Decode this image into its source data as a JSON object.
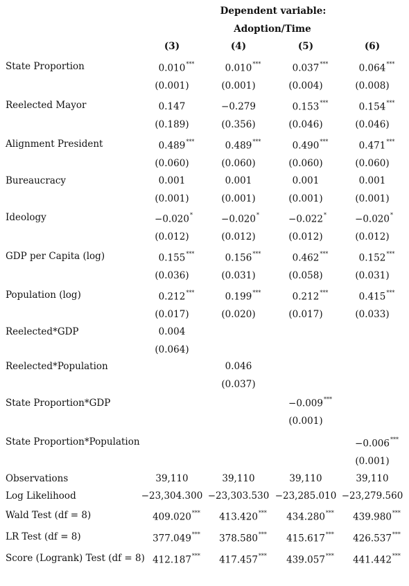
{
  "header": {
    "line1": "Dependent variable:",
    "line2": "Adoption/Time",
    "columns": [
      "(3)",
      "(4)",
      "(5)",
      "(6)"
    ]
  },
  "rows": [
    {
      "label": "State Proportion",
      "est": [
        {
          "v": "0.010",
          "s": "***"
        },
        {
          "v": "0.010",
          "s": "***"
        },
        {
          "v": "0.037",
          "s": "***"
        },
        {
          "v": "0.064",
          "s": "***"
        }
      ],
      "se": [
        "(0.001)",
        "(0.001)",
        "(0.004)",
        "(0.008)"
      ]
    },
    {
      "label": "Reelected Mayor",
      "est": [
        {
          "v": "0.147",
          "s": ""
        },
        {
          "v": "−0.279",
          "s": ""
        },
        {
          "v": "0.153",
          "s": "***"
        },
        {
          "v": "0.154",
          "s": "***"
        }
      ],
      "se": [
        "(0.189)",
        "(0.356)",
        "(0.046)",
        "(0.046)"
      ]
    },
    {
      "label": "Alignment President",
      "est": [
        {
          "v": "0.489",
          "s": "***"
        },
        {
          "v": "0.489",
          "s": "***"
        },
        {
          "v": "0.490",
          "s": "***"
        },
        {
          "v": "0.471",
          "s": "***"
        }
      ],
      "se": [
        "(0.060)",
        "(0.060)",
        "(0.060)",
        "(0.060)"
      ]
    },
    {
      "label": "Bureaucracy",
      "est": [
        {
          "v": "0.001",
          "s": ""
        },
        {
          "v": "0.001",
          "s": ""
        },
        {
          "v": "0.001",
          "s": ""
        },
        {
          "v": "0.001",
          "s": ""
        }
      ],
      "se": [
        "(0.001)",
        "(0.001)",
        "(0.001)",
        "(0.001)"
      ]
    },
    {
      "label": "Ideology",
      "est": [
        {
          "v": "−0.020",
          "s": "*"
        },
        {
          "v": "−0.020",
          "s": "*"
        },
        {
          "v": "−0.022",
          "s": "*"
        },
        {
          "v": "−0.020",
          "s": "*"
        }
      ],
      "se": [
        "(0.012)",
        "(0.012)",
        "(0.012)",
        "(0.012)"
      ]
    },
    {
      "label": "GDP per Capita (log)",
      "est": [
        {
          "v": "0.155",
          "s": "***"
        },
        {
          "v": "0.156",
          "s": "***"
        },
        {
          "v": "0.462",
          "s": "***"
        },
        {
          "v": "0.152",
          "s": "***"
        }
      ],
      "se": [
        "(0.036)",
        "(0.031)",
        "(0.058)",
        "(0.031)"
      ]
    },
    {
      "label": "Population (log)",
      "est": [
        {
          "v": "0.212",
          "s": "***"
        },
        {
          "v": "0.199",
          "s": "***"
        },
        {
          "v": "0.212",
          "s": "***"
        },
        {
          "v": "0.415",
          "s": "***"
        }
      ],
      "se": [
        "(0.017)",
        "(0.020)",
        "(0.017)",
        "(0.033)"
      ]
    },
    {
      "label": "Reelected*GDP",
      "est": [
        {
          "v": "0.004",
          "s": ""
        },
        null,
        null,
        null
      ],
      "se": [
        "(0.064)",
        null,
        null,
        null
      ]
    },
    {
      "label": "Reelected*Population",
      "est": [
        null,
        {
          "v": "0.046",
          "s": ""
        },
        null,
        null
      ],
      "se": [
        null,
        "(0.037)",
        null,
        null
      ]
    },
    {
      "label": "State Proportion*GDP",
      "est": [
        null,
        null,
        {
          "v": "−0.009",
          "s": "***"
        },
        null
      ],
      "se": [
        null,
        null,
        "(0.001)",
        null
      ]
    },
    {
      "label": "State Proportion*Population",
      "est": [
        null,
        null,
        null,
        {
          "v": "−0.006",
          "s": "***"
        }
      ],
      "se": [
        null,
        null,
        null,
        "(0.001)"
      ]
    }
  ],
  "stats": [
    {
      "label": "Observations",
      "vals": [
        {
          "v": "39,110",
          "s": ""
        },
        {
          "v": "39,110",
          "s": ""
        },
        {
          "v": "39,110",
          "s": ""
        },
        {
          "v": "39,110",
          "s": ""
        }
      ]
    },
    {
      "label": "Log Likelihood",
      "vals": [
        {
          "v": "−23,304.300",
          "s": ""
        },
        {
          "v": "−23,303.530",
          "s": ""
        },
        {
          "v": "−23,285.010",
          "s": ""
        },
        {
          "v": "−23,279.560",
          "s": ""
        }
      ]
    },
    {
      "label": "Wald Test (df = 8)",
      "vals": [
        {
          "v": "409.020",
          "s": "***"
        },
        {
          "v": "413.420",
          "s": "***"
        },
        {
          "v": "434.280",
          "s": "***"
        },
        {
          "v": "439.980",
          "s": "***"
        }
      ]
    },
    {
      "label": "LR Test (df = 8)",
      "vals": [
        {
          "v": "377.049",
          "s": "***"
        },
        {
          "v": "378.580",
          "s": "***"
        },
        {
          "v": "415.617",
          "s": "***"
        },
        {
          "v": "426.537",
          "s": "***"
        }
      ]
    },
    {
      "label": "Score (Logrank) Test (df = 8)",
      "vals": [
        {
          "v": "412.187",
          "s": "***"
        },
        {
          "v": "417.457",
          "s": "***"
        },
        {
          "v": "439.057",
          "s": "***"
        },
        {
          "v": "441.442",
          "s": "***"
        }
      ]
    }
  ]
}
